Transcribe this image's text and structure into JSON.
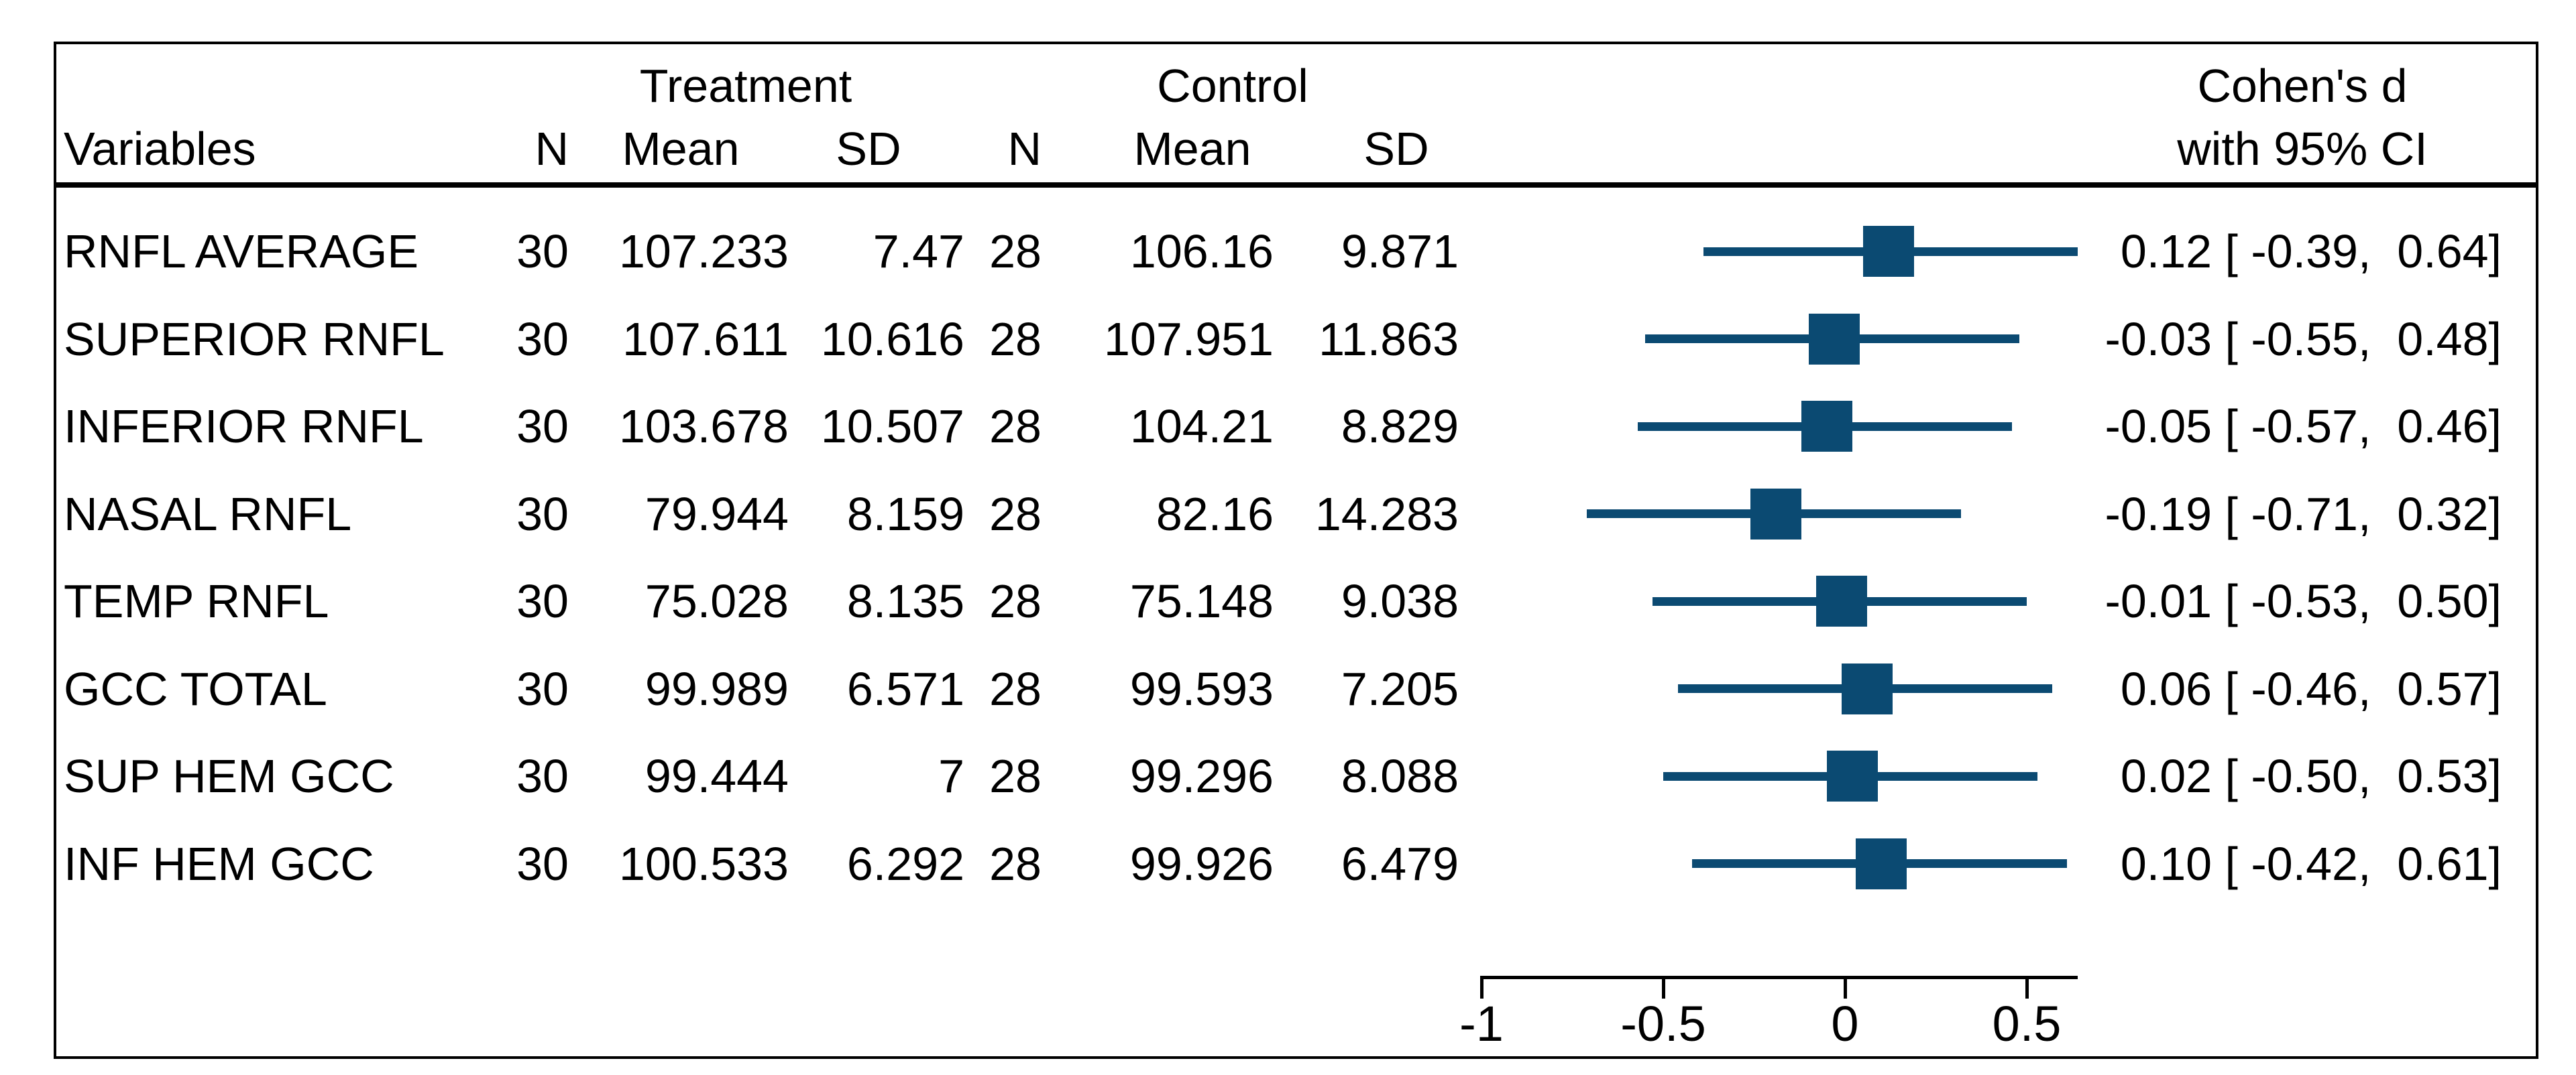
{
  "colors": {
    "marker_blue": "#0b4a72",
    "text": "#000000",
    "border": "#000000"
  },
  "table": {
    "group_headers": {
      "treatment": "Treatment",
      "control": "Control"
    },
    "col_headers": {
      "variables": "Variables",
      "n": "N",
      "mean": "Mean",
      "sd": "SD"
    },
    "effect_header_line1": "Cohen's d",
    "effect_header_line2": "with 95% CI",
    "rows": [
      {
        "variable": "RNFL AVERAGE",
        "t_n": "30",
        "t_mean": "107.233",
        "t_sd": "7.47",
        "c_n": "28",
        "c_mean": "106.16",
        "c_sd": "9.871",
        "d": 0.12,
        "lo": -0.39,
        "hi": 0.64,
        "ci_label": "0.12 [ -0.39,  0.64]"
      },
      {
        "variable": "SUPERIOR RNFL",
        "t_n": "30",
        "t_mean": "107.611",
        "t_sd": "10.616",
        "c_n": "28",
        "c_mean": "107.951",
        "c_sd": "11.863",
        "d": -0.03,
        "lo": -0.55,
        "hi": 0.48,
        "ci_label": "-0.03 [ -0.55,  0.48]"
      },
      {
        "variable": "INFERIOR RNFL",
        "t_n": "30",
        "t_mean": "103.678",
        "t_sd": "10.507",
        "c_n": "28",
        "c_mean": "104.21",
        "c_sd": "8.829",
        "d": -0.05,
        "lo": -0.57,
        "hi": 0.46,
        "ci_label": "-0.05 [ -0.57,  0.46]"
      },
      {
        "variable": "NASAL RNFL",
        "t_n": "30",
        "t_mean": "79.944",
        "t_sd": "8.159",
        "c_n": "28",
        "c_mean": "82.16",
        "c_sd": "14.283",
        "d": -0.19,
        "lo": -0.71,
        "hi": 0.32,
        "ci_label": "-0.19 [ -0.71,  0.32]"
      },
      {
        "variable": "TEMP RNFL",
        "t_n": "30",
        "t_mean": "75.028",
        "t_sd": "8.135",
        "c_n": "28",
        "c_mean": "75.148",
        "c_sd": "9.038",
        "d": -0.01,
        "lo": -0.53,
        "hi": 0.5,
        "ci_label": "-0.01 [ -0.53,  0.50]"
      },
      {
        "variable": "GCC TOTAL",
        "t_n": "30",
        "t_mean": "99.989",
        "t_sd": "6.571",
        "c_n": "28",
        "c_mean": "99.593",
        "c_sd": "7.205",
        "d": 0.06,
        "lo": -0.46,
        "hi": 0.57,
        "ci_label": "0.06 [ -0.46,  0.57]"
      },
      {
        "variable": "SUP HEM GCC",
        "t_n": "30",
        "t_mean": "99.444",
        "t_sd": "7",
        "c_n": "28",
        "c_mean": "99.296",
        "c_sd": "8.088",
        "d": 0.02,
        "lo": -0.5,
        "hi": 0.53,
        "ci_label": "0.02 [ -0.50,  0.53]"
      },
      {
        "variable": "INF HEM GCC",
        "t_n": "30",
        "t_mean": "100.533",
        "t_sd": "6.292",
        "c_n": "28",
        "c_mean": "99.926",
        "c_sd": "6.479",
        "d": 0.1,
        "lo": -0.42,
        "hi": 0.61,
        "ci_label": "0.10 [ -0.42,  0.61]"
      }
    ]
  },
  "axis": {
    "tick_labels": [
      "-1",
      "-0.5",
      "0",
      "0.5"
    ],
    "tick_values": [
      -1,
      -0.5,
      0,
      0.5
    ]
  },
  "chart_data": {
    "type": "forest",
    "title": "Cohen's d with 95% CI",
    "categories": [
      "RNFL AVERAGE",
      "SUPERIOR RNFL",
      "INFERIOR RNFL",
      "NASAL RNFL",
      "TEMP RNFL",
      "GCC TOTAL",
      "SUP HEM GCC",
      "INF HEM GCC"
    ],
    "series": [
      {
        "name": "Cohen's d",
        "values": [
          0.12,
          -0.03,
          -0.05,
          -0.19,
          -0.01,
          0.06,
          0.02,
          0.1
        ]
      },
      {
        "name": "CI lower 95%",
        "values": [
          -0.39,
          -0.55,
          -0.57,
          -0.71,
          -0.53,
          -0.46,
          -0.5,
          -0.42
        ]
      },
      {
        "name": "CI upper 95%",
        "values": [
          0.64,
          0.48,
          0.46,
          0.32,
          0.5,
          0.57,
          0.53,
          0.61
        ]
      },
      {
        "name": "Treatment N",
        "values": [
          30,
          30,
          30,
          30,
          30,
          30,
          30,
          30
        ]
      },
      {
        "name": "Treatment Mean",
        "values": [
          107.233,
          107.611,
          103.678,
          79.944,
          75.028,
          99.989,
          99.444,
          100.533
        ]
      },
      {
        "name": "Treatment SD",
        "values": [
          7.47,
          10.616,
          10.507,
          8.159,
          8.135,
          6.571,
          7,
          6.292
        ]
      },
      {
        "name": "Control N",
        "values": [
          28,
          28,
          28,
          28,
          28,
          28,
          28,
          28
        ]
      },
      {
        "name": "Control Mean",
        "values": [
          106.16,
          107.951,
          104.21,
          82.16,
          75.148,
          99.593,
          99.296,
          99.926
        ]
      },
      {
        "name": "Control SD",
        "values": [
          9.871,
          11.863,
          8.829,
          14.283,
          9.038,
          7.205,
          8.088,
          6.479
        ]
      }
    ],
    "xlabel": "",
    "ylabel": "",
    "xlim": [
      -1,
      0.64
    ],
    "x_ticks": [
      -1,
      -0.5,
      0,
      0.5
    ],
    "grid": false,
    "legend_position": "none"
  }
}
